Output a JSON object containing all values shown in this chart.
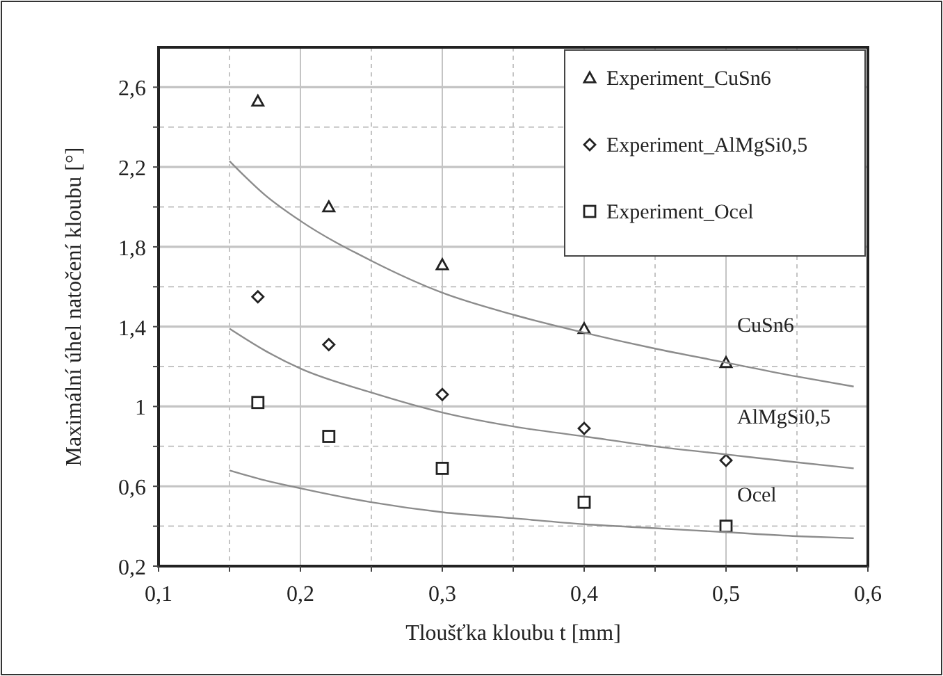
{
  "chart_data": {
    "type": "scatter",
    "xlabel": "Tloušťka kloubu t  [mm]",
    "ylabel": "Maximální úhel natočení kloubu  [°]",
    "xlim": [
      0.1,
      0.6
    ],
    "xticks": [
      {
        "value": 0.1,
        "label": "0,1"
      },
      {
        "value": 0.15,
        "label": null
      },
      {
        "value": 0.2,
        "label": "0,2"
      },
      {
        "value": 0.25,
        "label": null
      },
      {
        "value": 0.3,
        "label": "0,3"
      },
      {
        "value": 0.35,
        "label": null
      },
      {
        "value": 0.4,
        "label": "0,4"
      },
      {
        "value": 0.45,
        "label": null
      },
      {
        "value": 0.5,
        "label": "0,5"
      },
      {
        "value": 0.55,
        "label": null
      },
      {
        "value": 0.6,
        "label": "0,6"
      }
    ],
    "ylim": [
      0.2,
      2.8
    ],
    "yticks": [
      {
        "value": 0.2,
        "label": "0,2"
      },
      {
        "value": 0.4,
        "label": null
      },
      {
        "value": 0.6,
        "label": "0,6"
      },
      {
        "value": 0.8,
        "label": null
      },
      1,
      {
        "value": 1.2,
        "label": null
      },
      {
        "value": 1.4,
        "label": "1,4"
      },
      {
        "value": 1.6,
        "label": null
      },
      {
        "value": 1.8,
        "label": "1,8"
      },
      {
        "value": 2.0,
        "label": null
      },
      {
        "value": 2.2,
        "label": "2,2"
      },
      {
        "value": 2.4,
        "label": null
      },
      {
        "value": 2.6,
        "label": "2,6"
      }
    ],
    "grid": true,
    "legend": "top right",
    "series": [
      {
        "name": "Experiment_CuSn6",
        "marker": "triangle",
        "color": "#222222",
        "x": [
          0.17,
          0.22,
          0.3,
          0.4,
          0.5
        ],
        "values": [
          2.53,
          2.0,
          1.71,
          1.39,
          1.22
        ]
      },
      {
        "name": "Experiment_AlMgSi0,5",
        "marker": "diamond",
        "color": "#222222",
        "x": [
          0.17,
          0.22,
          0.3,
          0.4,
          0.5
        ],
        "values": [
          1.55,
          1.31,
          1.06,
          0.89,
          0.73
        ]
      },
      {
        "name": "Experiment_Ocel",
        "marker": "square",
        "color": "#222222",
        "x": [
          0.17,
          0.22,
          0.3,
          0.4,
          0.5
        ],
        "values": [
          1.02,
          0.85,
          0.69,
          0.52,
          0.4
        ]
      },
      {
        "type": "line",
        "marker": "none",
        "color": "#8c8c8c",
        "x": [
          0.15,
          0.175,
          0.2,
          0.25,
          0.3,
          0.35,
          0.4,
          0.45,
          0.5,
          0.55,
          0.59
        ],
        "values": [
          2.23,
          2.06,
          1.93,
          1.73,
          1.57,
          1.46,
          1.37,
          1.29,
          1.22,
          1.15,
          1.1
        ]
      },
      {
        "type": "line",
        "marker": "none",
        "color": "#8c8c8c",
        "x": [
          0.15,
          0.175,
          0.2,
          0.25,
          0.3,
          0.35,
          0.4,
          0.45,
          0.5,
          0.55,
          0.59
        ],
        "values": [
          1.39,
          1.28,
          1.19,
          1.07,
          0.97,
          0.9,
          0.85,
          0.8,
          0.76,
          0.72,
          0.69
        ]
      },
      {
        "type": "line",
        "marker": "none",
        "color": "#8c8c8c",
        "x": [
          0.15,
          0.175,
          0.2,
          0.25,
          0.3,
          0.35,
          0.4,
          0.45,
          0.5,
          0.55,
          0.59
        ],
        "values": [
          0.68,
          0.63,
          0.59,
          0.52,
          0.47,
          0.44,
          0.41,
          0.39,
          0.37,
          0.35,
          0.34
        ]
      }
    ],
    "annotations": [
      "CuSn6",
      "AlMgSi0,5",
      "Ocel"
    ]
  }
}
